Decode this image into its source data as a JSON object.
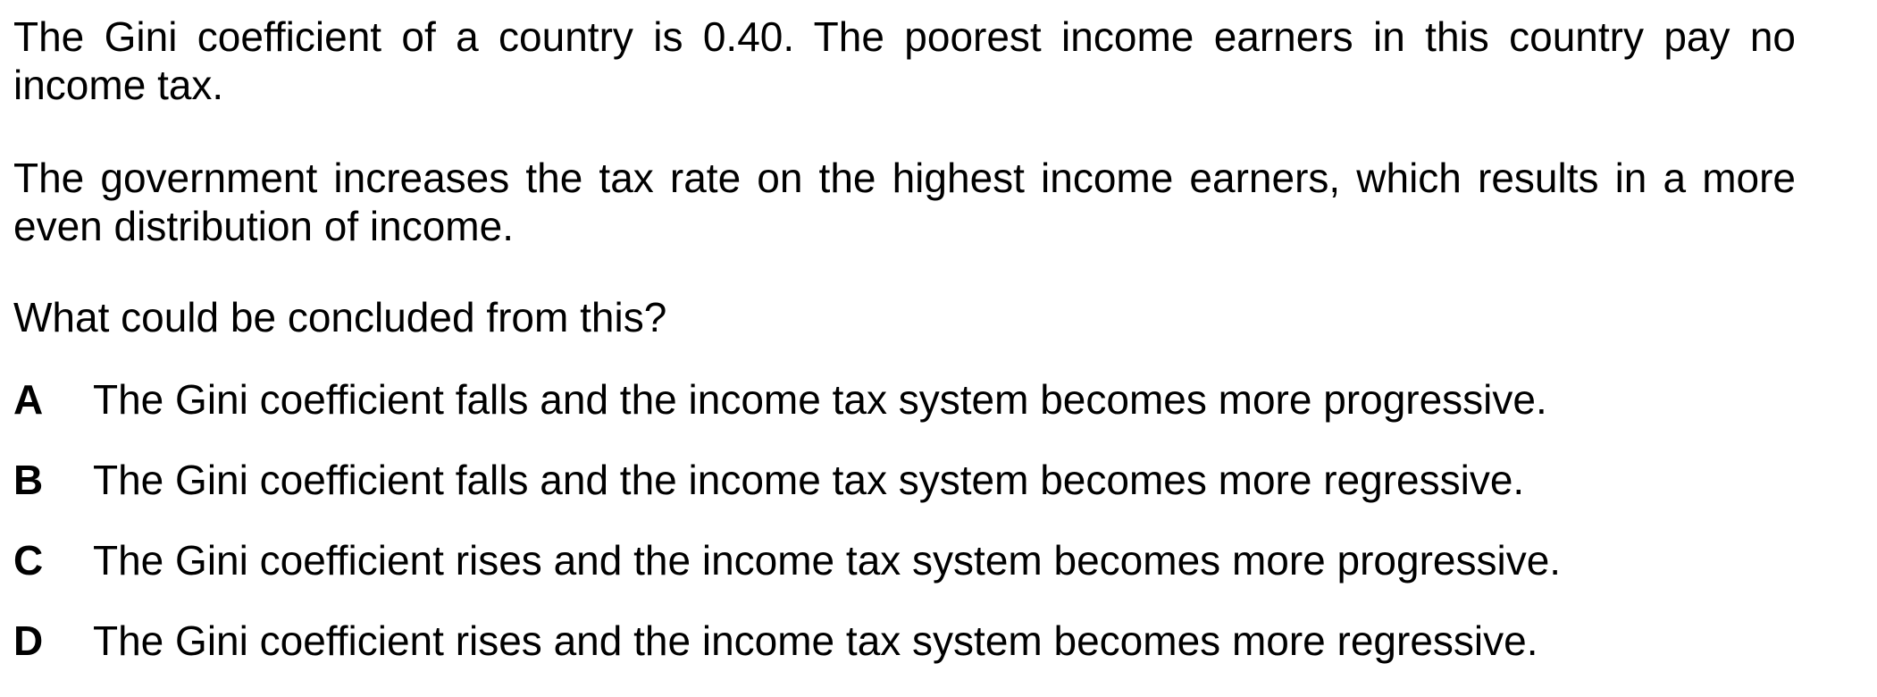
{
  "question": {
    "paragraphs": [
      "The Gini coefficient of a country is 0.40. The poorest income earners in this country pay no income tax.",
      "The government increases the tax rate on the highest income earners, which results in a more even distribution of income."
    ],
    "prompt": "What could be concluded from this?"
  },
  "options": [
    {
      "letter": "A",
      "text": "The Gini coefficient falls and the income tax system becomes more progressive."
    },
    {
      "letter": "B",
      "text": "The Gini coefficient falls and the income tax system becomes more regressive."
    },
    {
      "letter": "C",
      "text": "The Gini coefficient rises and the income tax system becomes more progressive."
    },
    {
      "letter": "D",
      "text": "The Gini coefficient rises and the income tax system becomes more regressive."
    }
  ]
}
